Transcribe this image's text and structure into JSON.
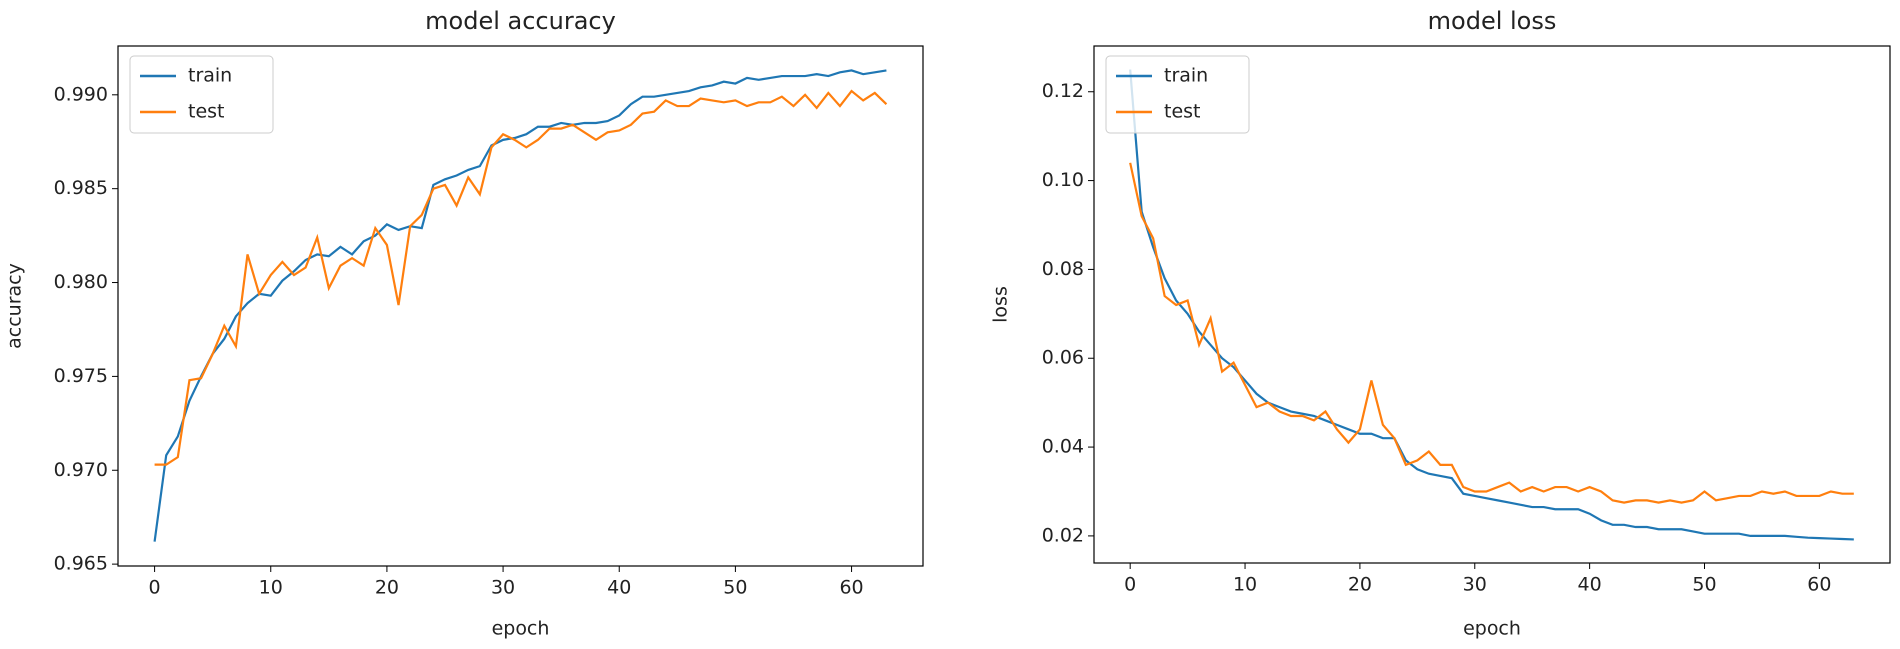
{
  "chart_data": [
    {
      "type": "line",
      "title": "model accuracy",
      "xlabel": "epoch",
      "ylabel": "accuracy",
      "x": [
        0,
        1,
        2,
        3,
        4,
        5,
        6,
        7,
        8,
        9,
        10,
        11,
        12,
        13,
        14,
        15,
        16,
        17,
        18,
        19,
        20,
        21,
        22,
        23,
        24,
        25,
        26,
        27,
        28,
        29,
        30,
        31,
        32,
        33,
        34,
        35,
        36,
        37,
        38,
        39,
        40,
        41,
        42,
        43,
        44,
        45,
        46,
        47,
        48,
        49,
        50,
        51,
        52,
        53,
        54,
        55,
        56,
        57,
        58,
        59,
        60,
        61,
        62,
        63
      ],
      "series": [
        {
          "name": "train",
          "color": "#1f77b4",
          "values": [
            0.9662,
            0.9708,
            0.9718,
            0.9737,
            0.975,
            0.9762,
            0.977,
            0.9782,
            0.9789,
            0.9794,
            0.9793,
            0.9801,
            0.9806,
            0.9812,
            0.9815,
            0.9814,
            0.9819,
            0.9815,
            0.9822,
            0.9825,
            0.9831,
            0.9828,
            0.983,
            0.9829,
            0.9852,
            0.9855,
            0.9857,
            0.986,
            0.9862,
            0.9873,
            0.9876,
            0.9877,
            0.9879,
            0.9883,
            0.9883,
            0.9885,
            0.9884,
            0.9885,
            0.9885,
            0.9886,
            0.9889,
            0.9895,
            0.9899,
            0.9899,
            0.99,
            0.9901,
            0.9902,
            0.9904,
            0.9905,
            0.9907,
            0.9906,
            0.9909,
            0.9908,
            0.9909,
            0.991,
            0.991,
            0.991,
            0.9911,
            0.991,
            0.9912,
            0.9913,
            0.9911,
            0.9912,
            0.9913
          ]
        },
        {
          "name": "test",
          "color": "#ff7f0e",
          "values": [
            0.9703,
            0.9703,
            0.9707,
            0.9748,
            0.9749,
            0.9762,
            0.9777,
            0.9766,
            0.9815,
            0.9794,
            0.9804,
            0.9811,
            0.9804,
            0.9808,
            0.9824,
            0.9797,
            0.9809,
            0.9813,
            0.9809,
            0.9829,
            0.982,
            0.9788,
            0.983,
            0.9836,
            0.985,
            0.9852,
            0.9841,
            0.9856,
            0.9847,
            0.9872,
            0.9879,
            0.9876,
            0.9872,
            0.9876,
            0.9882,
            0.9882,
            0.9884,
            0.988,
            0.9876,
            0.988,
            0.9881,
            0.9884,
            0.989,
            0.9891,
            0.9897,
            0.9894,
            0.9894,
            0.9898,
            0.9897,
            0.9896,
            0.9897,
            0.9894,
            0.9896,
            0.9896,
            0.9899,
            0.9894,
            0.99,
            0.9893,
            0.9901,
            0.9894,
            0.9902,
            0.9897,
            0.9901,
            0.9895
          ]
        }
      ],
      "xlim": [
        -3.15,
        66.15
      ],
      "xticks": [
        0,
        10,
        20,
        30,
        40,
        50,
        60
      ],
      "ylim": [
        0.9649,
        0.9926
      ],
      "yticks": [
        0.965,
        {
          "value": 0.97,
          "label": "0.970"
        },
        0.975,
        {
          "value": 0.98,
          "label": "0.980"
        },
        0.985,
        {
          "value": 0.99,
          "label": "0.990"
        }
      ],
      "legend": "upper left"
    },
    {
      "type": "line",
      "title": "model loss",
      "xlabel": "epoch",
      "ylabel": "loss",
      "x": [
        0,
        1,
        2,
        3,
        4,
        5,
        6,
        7,
        8,
        9,
        10,
        11,
        12,
        13,
        14,
        15,
        16,
        17,
        18,
        19,
        20,
        21,
        22,
        23,
        24,
        25,
        26,
        27,
        28,
        29,
        30,
        31,
        32,
        33,
        34,
        35,
        36,
        37,
        38,
        39,
        40,
        41,
        42,
        43,
        44,
        45,
        46,
        47,
        48,
        49,
        50,
        51,
        52,
        53,
        54,
        55,
        56,
        57,
        58,
        59,
        60,
        61,
        62,
        63
      ],
      "series": [
        {
          "name": "train",
          "color": "#1f77b4",
          "values": [
            0.125,
            0.093,
            0.085,
            0.078,
            0.073,
            0.07,
            0.066,
            0.063,
            0.06,
            0.058,
            0.055,
            0.052,
            0.05,
            0.049,
            0.048,
            0.0475,
            0.047,
            0.046,
            0.045,
            0.044,
            0.043,
            0.043,
            0.042,
            0.042,
            0.037,
            0.035,
            0.034,
            0.0335,
            0.033,
            0.0295,
            0.029,
            0.0285,
            0.028,
            0.0275,
            0.027,
            0.0265,
            0.0265,
            0.026,
            0.026,
            0.026,
            0.025,
            0.0235,
            0.0225,
            0.0225,
            0.022,
            0.022,
            0.0215,
            0.0215,
            0.0215,
            0.021,
            0.0205,
            0.0205,
            0.0205,
            0.0205,
            0.02,
            0.02,
            0.02,
            0.02,
            0.0198,
            0.0196,
            0.0195,
            0.0194,
            0.0193,
            0.0192
          ]
        },
        {
          "name": "test",
          "color": "#ff7f0e",
          "values": [
            0.104,
            0.092,
            0.087,
            0.074,
            0.072,
            0.073,
            0.063,
            0.069,
            0.057,
            0.059,
            0.054,
            0.049,
            0.05,
            0.048,
            0.047,
            0.047,
            0.046,
            0.048,
            0.044,
            0.041,
            0.044,
            0.055,
            0.045,
            0.042,
            0.036,
            0.037,
            0.039,
            0.036,
            0.036,
            0.031,
            0.03,
            0.03,
            0.031,
            0.032,
            0.03,
            0.031,
            0.03,
            0.031,
            0.031,
            0.03,
            0.031,
            0.03,
            0.028,
            0.0275,
            0.028,
            0.028,
            0.0275,
            0.028,
            0.0275,
            0.028,
            0.03,
            0.028,
            0.0285,
            0.029,
            0.029,
            0.03,
            0.0295,
            0.03,
            0.029,
            0.029,
            0.029,
            0.03,
            0.0295,
            0.0295
          ]
        }
      ],
      "xlim": [
        -3.15,
        66.15
      ],
      "xticks": [
        0,
        10,
        20,
        30,
        40,
        50,
        60
      ],
      "ylim": [
        0.0139,
        0.1303
      ],
      "yticks": [
        0.02,
        0.04,
        0.06,
        0.08,
        {
          "value": 0.1,
          "label": "0.10"
        },
        0.12
      ],
      "legend": "upper left"
    }
  ]
}
